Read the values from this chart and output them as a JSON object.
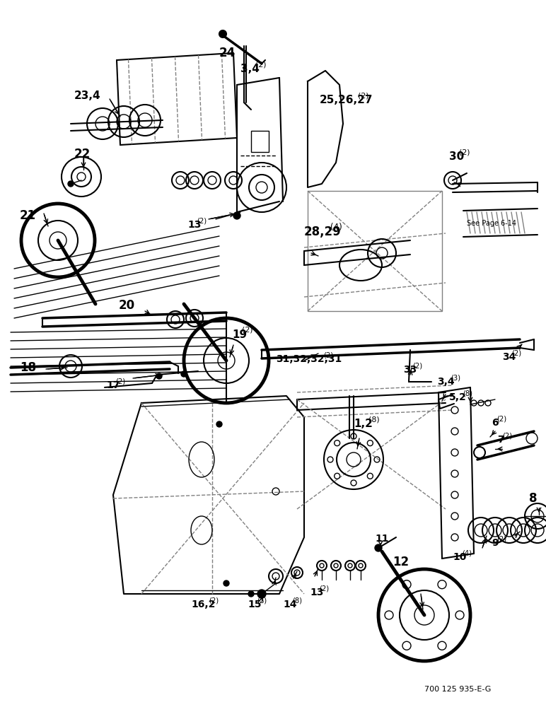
{
  "background_color": "#ffffff",
  "part_number_watermark": "700 125 935-E-G",
  "fig_width": 7.72,
  "fig_height": 10.0,
  "dpi": 100
}
